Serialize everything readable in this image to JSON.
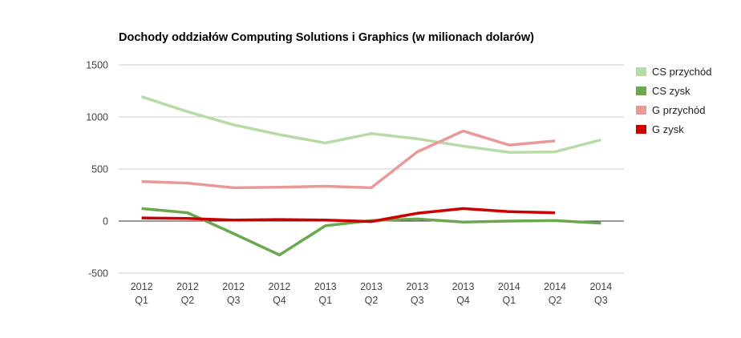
{
  "chart_data": {
    "type": "line",
    "title": "Dochody oddziałów Computing Solutions i Graphics (w milionach dolarów)",
    "xlabel": "",
    "ylabel": "",
    "ylim": [
      -500,
      1500
    ],
    "yticks": [
      1500,
      1000,
      500,
      0,
      -500
    ],
    "grid": true,
    "legend_position": "right",
    "categories": [
      {
        "year": "2012",
        "quarter": "Q1"
      },
      {
        "year": "2012",
        "quarter": "Q2"
      },
      {
        "year": "2012",
        "quarter": "Q3"
      },
      {
        "year": "2012",
        "quarter": "Q4"
      },
      {
        "year": "2013",
        "quarter": "Q1"
      },
      {
        "year": "2013",
        "quarter": "Q2"
      },
      {
        "year": "2013",
        "quarter": "Q3"
      },
      {
        "year": "2013",
        "quarter": "Q4"
      },
      {
        "year": "2014",
        "quarter": "Q1"
      },
      {
        "year": "2014",
        "quarter": "Q2"
      },
      {
        "year": "2014",
        "quarter": "Q3"
      }
    ],
    "series": [
      {
        "name": "CS przychód",
        "color": "#b6dba5",
        "values": [
          1195,
          1050,
          925,
          830,
          750,
          840,
          790,
          720,
          660,
          665,
          780
        ]
      },
      {
        "name": "CS zysk",
        "color": "#6aa84f",
        "values": [
          120,
          80,
          -120,
          -325,
          -45,
          5,
          20,
          -10,
          0,
          5,
          -20
        ]
      },
      {
        "name": "G przychód",
        "color": "#ea9999",
        "values": [
          380,
          365,
          320,
          325,
          335,
          320,
          665,
          865,
          730,
          770,
          null
        ]
      },
      {
        "name": "G zysk",
        "color": "#cc0000",
        "values": [
          30,
          25,
          10,
          15,
          10,
          -5,
          75,
          120,
          90,
          80,
          null
        ]
      }
    ]
  }
}
